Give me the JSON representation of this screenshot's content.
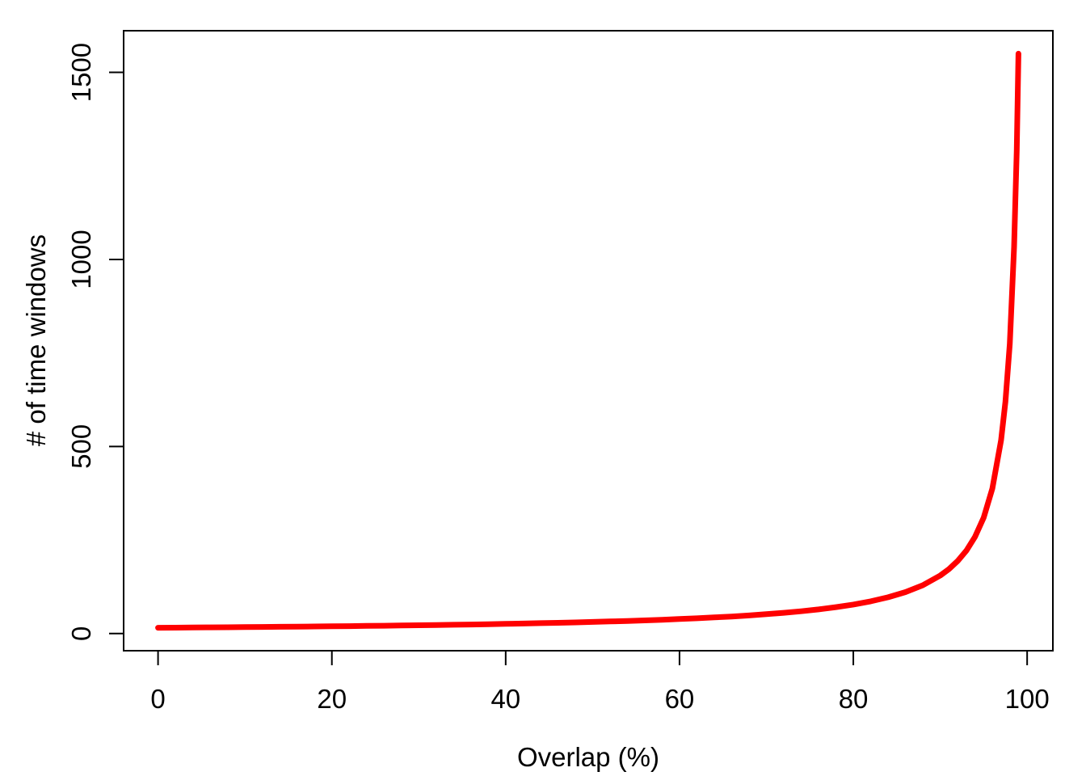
{
  "figure": {
    "background": "#FFFFFF"
  },
  "chart_data": {
    "type": "line",
    "title": "",
    "xlabel": "Overlap (%)",
    "ylabel": "# of time windows",
    "x": [
      0,
      2,
      4,
      6,
      8,
      10,
      12,
      14,
      16,
      18,
      20,
      22,
      24,
      26,
      28,
      30,
      32,
      34,
      36,
      38,
      40,
      42,
      44,
      46,
      48,
      50,
      52,
      54,
      56,
      58,
      60,
      62,
      64,
      66,
      68,
      70,
      72,
      74,
      76,
      78,
      80,
      82,
      84,
      86,
      88,
      90,
      91,
      92,
      93,
      94,
      95,
      96,
      97,
      97.5,
      98,
      98.5,
      98.8,
      99
    ],
    "y": [
      15.5,
      15.8,
      16.1,
      16.5,
      16.8,
      17.2,
      17.6,
      18.0,
      18.5,
      18.9,
      19.4,
      19.9,
      20.4,
      20.9,
      21.5,
      22.1,
      22.8,
      23.5,
      24.2,
      25.0,
      25.8,
      26.7,
      27.7,
      28.7,
      29.8,
      31.0,
      32.3,
      33.7,
      35.2,
      36.9,
      38.8,
      40.8,
      43.1,
      45.6,
      48.4,
      51.7,
      55.4,
      59.6,
      64.6,
      70.5,
      77.5,
      86.1,
      96.9,
      110.7,
      129.2,
      155.0,
      172.2,
      193.8,
      221.4,
      258.3,
      310.0,
      387.5,
      516.7,
      620.0,
      775.0,
      1033.3,
      1291.7,
      1550.0
    ],
    "xticks": [
      0,
      20,
      40,
      60,
      80,
      100
    ],
    "yticks": [
      0,
      500,
      1000,
      1500
    ],
    "xlim": [
      0,
      99
    ],
    "ylim": [
      15.5,
      1550
    ],
    "grid": false,
    "legend": false,
    "line_color": "#FF0000",
    "line_width": 7,
    "axis_color": "#000000",
    "series_name": "number of time windows"
  }
}
